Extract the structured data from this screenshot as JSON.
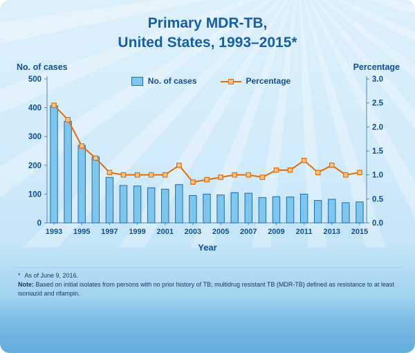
{
  "title": {
    "line1": "Primary MDR-TB,",
    "line2": "United States, 1993–2015*"
  },
  "axes": {
    "left_label": "No. of cases",
    "right_label": "Percentage",
    "x_label": "Year"
  },
  "legend": {
    "cases": "No. of cases",
    "percentage": "Percentage"
  },
  "footnotes": {
    "star": "*",
    "asof": "As of June 9, 2016.",
    "note_label": "Note:",
    "note_text": " Based on initial isolates from persons with no prior history of TB; multidrug resistant TB (MDR-TB) defined as resistance to at least isoniazid and rifampin."
  },
  "colors": {
    "bar_fill": "#7fc6ee",
    "bar_stroke": "#1f6cb0",
    "line": "#e36c0a",
    "marker_fill": "#f7c789",
    "axis": "#5b84b8",
    "tick_text": "#0f4f97"
  },
  "chart_data": {
    "type": "bar+line",
    "title": "Primary MDR-TB, United States, 1993–2015*",
    "x": [
      1993,
      1994,
      1995,
      1996,
      1997,
      1998,
      1999,
      2000,
      2001,
      2002,
      2003,
      2004,
      2005,
      2006,
      2007,
      2008,
      2009,
      2010,
      2011,
      2012,
      2013,
      2014,
      2015
    ],
    "series": [
      {
        "name": "No. of cases",
        "type": "bar",
        "axis": "left",
        "values": [
          407,
          353,
          269,
          229,
          158,
          130,
          128,
          122,
          117,
          133,
          95,
          100,
          97,
          105,
          103,
          88,
          91,
          90,
          100,
          78,
          82,
          70,
          73
        ]
      },
      {
        "name": "Percentage",
        "type": "line",
        "axis": "right",
        "values": [
          2.45,
          2.15,
          1.6,
          1.35,
          1.05,
          1.0,
          1.0,
          1.0,
          1.0,
          1.2,
          0.85,
          0.9,
          0.95,
          1.0,
          1.0,
          0.95,
          1.1,
          1.1,
          1.3,
          1.05,
          1.2,
          1.0,
          1.05
        ]
      }
    ],
    "left_axis": {
      "min": 0,
      "max": 500,
      "label": "No. of cases"
    },
    "right_axis": {
      "min": 0,
      "max": 3.0,
      "label": "Percentage"
    },
    "left_tick_labels": [
      "0",
      "100",
      "200",
      "300",
      "400",
      "500"
    ],
    "right_tick_labels": [
      "0.0",
      "0.5",
      "1.0",
      "1.5",
      "2.0",
      "2.5",
      "3.0"
    ],
    "x_tick_labels": [
      "1993",
      "1995",
      "1997",
      "1999",
      "2001",
      "2003",
      "2005",
      "2007",
      "2009",
      "2011",
      "2013",
      "2015"
    ],
    "xlabel": "Year",
    "grid": false,
    "legend_position": "top-center"
  }
}
